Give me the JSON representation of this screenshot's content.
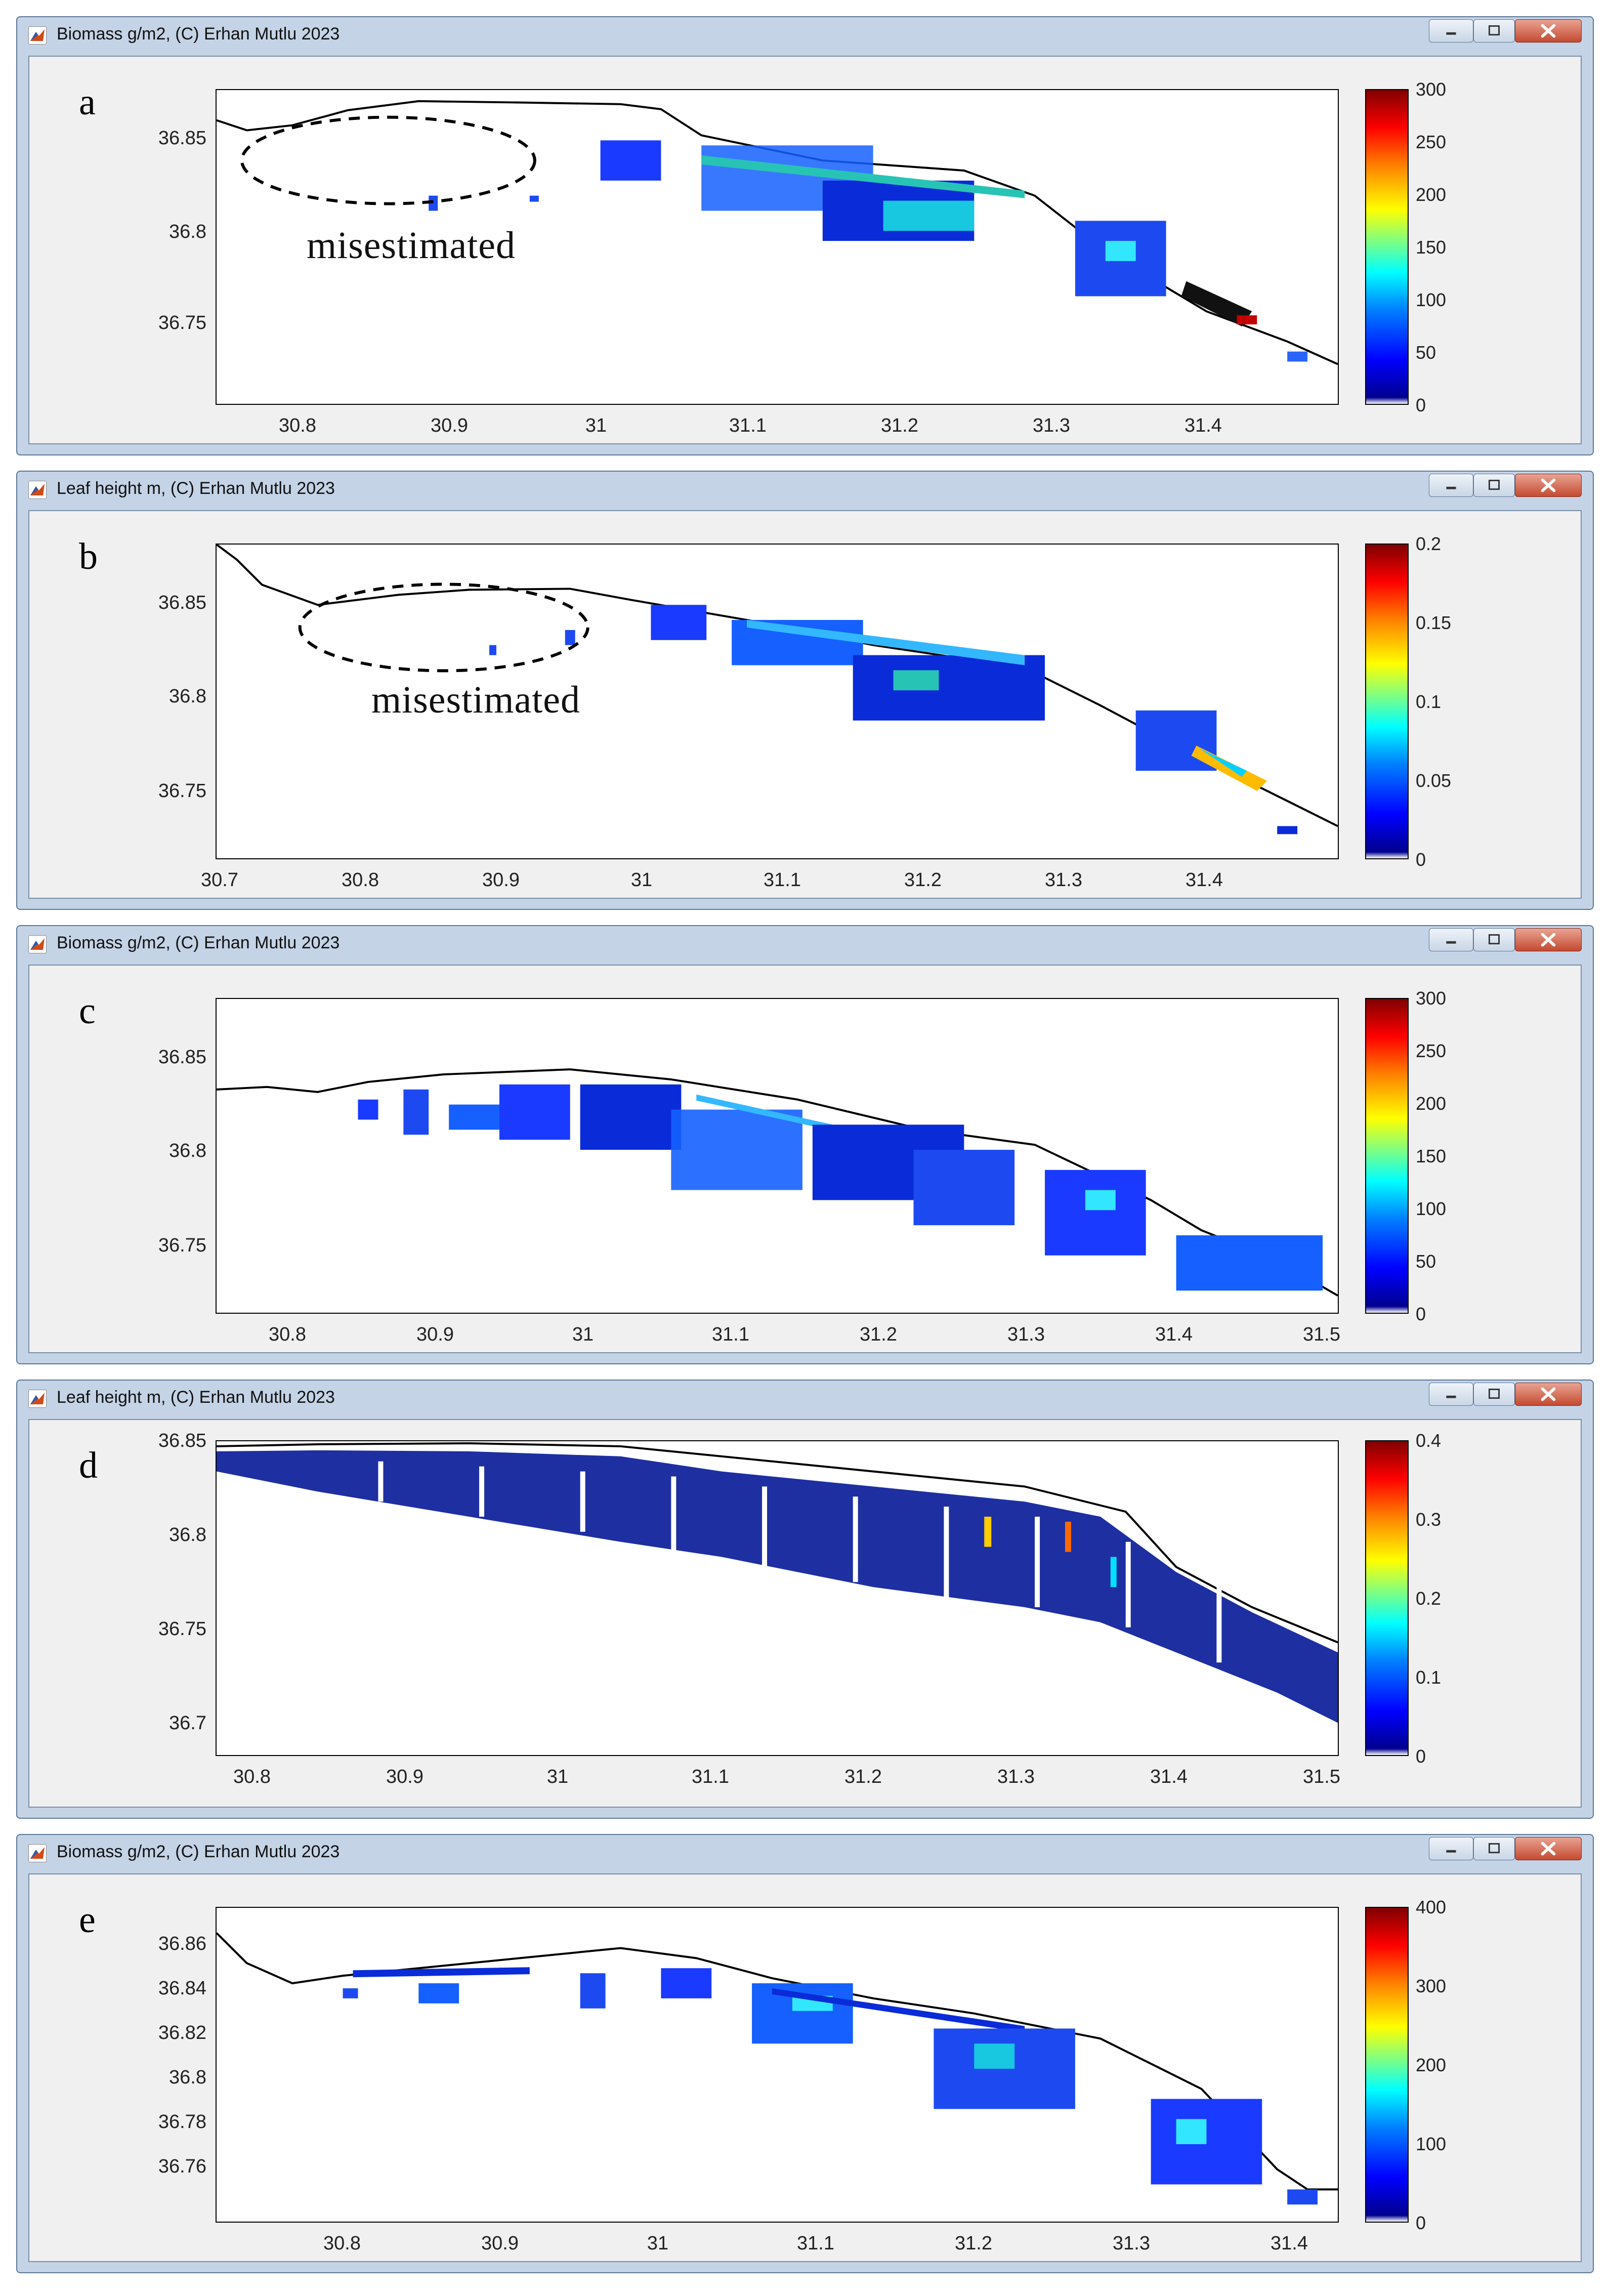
{
  "colormap": [
    "#00008f",
    "#0000ff",
    "#0080ff",
    "#00ffff",
    "#80ff80",
    "#ffff00",
    "#ff8000",
    "#ff0000",
    "#800000"
  ],
  "shoreline_color": "#000000",
  "windows": [
    {
      "id": "a",
      "title": "Biomass g/m2, (C) Erhan Mutlu 2023",
      "panel_label": "a",
      "annotation": "misestimated",
      "window_controls": [
        "minimize-icon",
        "maximize-icon",
        "close-icon"
      ],
      "y_ticks": [
        "36.85",
        "36.8",
        "36.75"
      ],
      "x_ticks": [
        "30.8",
        "30.9",
        "31",
        "31.1",
        "31.2",
        "31.3",
        "31.4"
      ],
      "colorbar_ticks": [
        "300",
        "250",
        "200",
        "150",
        "100",
        "50",
        "0"
      ]
    },
    {
      "id": "b",
      "title": "Leaf height m, (C) Erhan Mutlu 2023",
      "panel_label": "b",
      "annotation": "misestimated",
      "window_controls": [
        "minimize-icon",
        "maximize-icon",
        "close-icon"
      ],
      "y_ticks": [
        "36.85",
        "36.8",
        "36.75"
      ],
      "x_ticks": [
        "30.7",
        "30.8",
        "30.9",
        "31",
        "31.1",
        "31.2",
        "31.3",
        "31.4"
      ],
      "colorbar_ticks": [
        "0.2",
        "0.15",
        "0.1",
        "0.05",
        "0"
      ]
    },
    {
      "id": "c",
      "title": "Biomass g/m2, (C) Erhan Mutlu 2023",
      "panel_label": "c",
      "window_controls": [
        "minimize-icon",
        "maximize-icon",
        "close-icon"
      ],
      "y_ticks": [
        "36.85",
        "36.8",
        "36.75"
      ],
      "x_ticks": [
        "30.8",
        "30.9",
        "31",
        "31.1",
        "31.2",
        "31.3",
        "31.4",
        "31.5"
      ],
      "colorbar_ticks": [
        "300",
        "250",
        "200",
        "150",
        "100",
        "50",
        "0"
      ]
    },
    {
      "id": "d",
      "title": "Leaf height m, (C) Erhan Mutlu 2023",
      "panel_label": "d",
      "window_controls": [
        "minimize-icon",
        "maximize-icon",
        "close-icon"
      ],
      "y_ticks": [
        "36.85",
        "36.8",
        "36.75",
        "36.7"
      ],
      "x_ticks": [
        "30.8",
        "30.9",
        "31",
        "31.1",
        "31.2",
        "31.3",
        "31.4",
        "31.5"
      ],
      "colorbar_ticks": [
        "0.4",
        "0.3",
        "0.2",
        "0.1",
        "0"
      ]
    },
    {
      "id": "e",
      "title": "Biomass g/m2, (C) Erhan Mutlu 2023",
      "panel_label": "e",
      "window_controls": [
        "minimize-icon",
        "maximize-icon",
        "close-icon"
      ],
      "y_ticks": [
        "36.86",
        "36.84",
        "36.82",
        "36.8",
        "36.78",
        "36.76"
      ],
      "x_ticks": [
        "30.8",
        "30.9",
        "31",
        "31.1",
        "31.2",
        "31.3",
        "31.4"
      ],
      "colorbar_ticks": [
        "400",
        "300",
        "200",
        "100",
        "0"
      ]
    }
  ]
}
